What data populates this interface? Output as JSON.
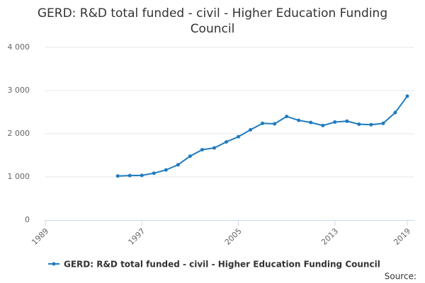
{
  "chart_data": {
    "type": "line",
    "title": "GERD: R&D total funded - civil - Higher Education Funding Council",
    "source": "Source:",
    "x": [
      1995,
      1996,
      1997,
      1998,
      1999,
      2000,
      2001,
      2002,
      2003,
      2004,
      2005,
      2006,
      2007,
      2008,
      2009,
      2010,
      2011,
      2012,
      2013,
      2014,
      2015,
      2016,
      2017,
      2018,
      2019
    ],
    "series": [
      {
        "name": "GERD: R&D total funded - civil - Higher Education Funding Council",
        "color": "#1f7bbf",
        "values": [
          1020,
          1030,
          1035,
          1085,
          1160,
          1280,
          1480,
          1630,
          1670,
          1810,
          1930,
          2090,
          2240,
          2230,
          2400,
          2310,
          2260,
          2190,
          2270,
          2290,
          2220,
          2210,
          2240,
          2490,
          2870
        ]
      }
    ],
    "xlim": [
      1989,
      2019
    ],
    "xticks": [
      1989,
      1997,
      2005,
      2013,
      2019
    ],
    "ylim": [
      0,
      4000
    ],
    "yticks": [
      0,
      {
        "value": 1000,
        "label": "1 000"
      },
      {
        "value": 2000,
        "label": "2 000"
      },
      {
        "value": 3000,
        "label": "3 000"
      },
      {
        "value": 4000,
        "label": "4 000"
      }
    ],
    "grid": true
  }
}
